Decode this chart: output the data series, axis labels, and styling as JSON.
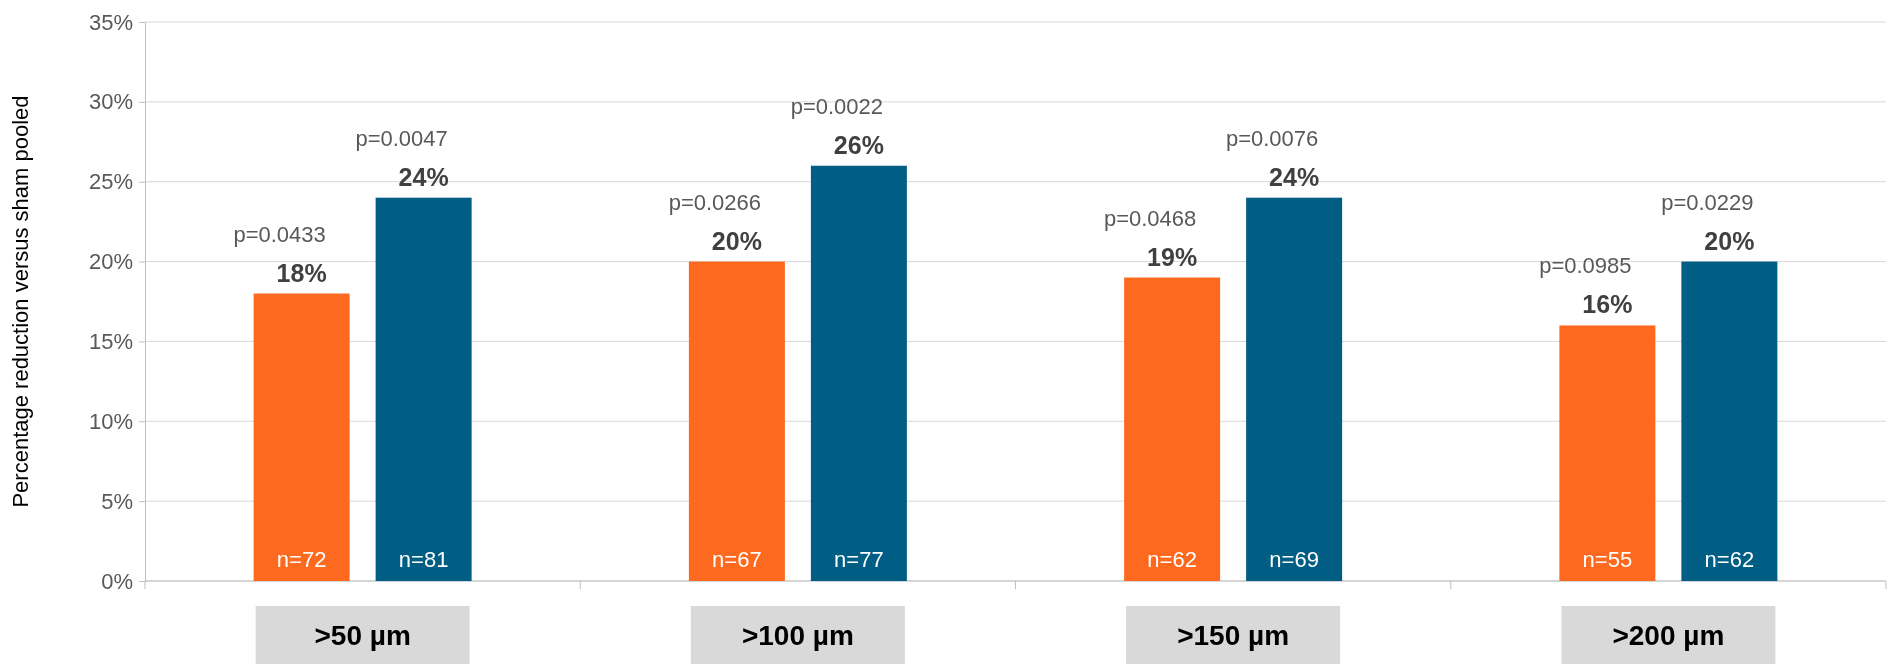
{
  "chart_data": {
    "type": "bar",
    "ylabel": "Percentage reduction versus sham pooled",
    "categories": [
      ">50 µm",
      ">100 µm",
      ">150 µm",
      ">200 µm"
    ],
    "series": [
      {
        "color": "#fd6a1f",
        "values": [
          18,
          20,
          19,
          16
        ],
        "value_labels": [
          "18%",
          "20%",
          "19%",
          "16%"
        ]
      },
      {
        "color": "#005e85",
        "values": [
          24,
          26,
          24,
          20
        ],
        "value_labels": [
          "24%",
          "26%",
          "24%",
          "20%"
        ]
      }
    ],
    "ylim": [
      0,
      35
    ],
    "yticks": [
      {
        "value": 0,
        "label": "0%"
      },
      {
        "value": 5,
        "label": "5%"
      },
      {
        "value": 10,
        "label": "10%"
      },
      {
        "value": 15,
        "label": "15%"
      },
      {
        "value": 20,
        "label": "20%"
      },
      {
        "value": 25,
        "label": "25%"
      },
      {
        "value": 30,
        "label": "30%"
      },
      {
        "value": 35,
        "label": "35%"
      }
    ],
    "grid": "y",
    "annotations": [
      "p=0.0433",
      "p=0.0047",
      "p=0.0266",
      "p=0.0022",
      "p=0.0468",
      "p=0.0076",
      "p=0.0985",
      "p=0.0229",
      "n=72",
      "n=81",
      "n=67",
      "n=77",
      "n=62",
      "n=69",
      "n=55",
      "n=62"
    ]
  }
}
